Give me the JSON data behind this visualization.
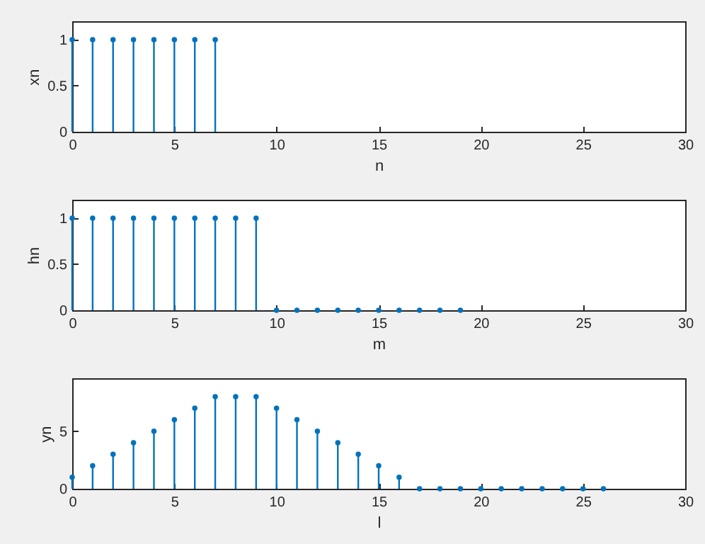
{
  "chart_data": [
    {
      "type": "lollipop",
      "xlabel": "n",
      "ylabel": "xn",
      "x": [
        0,
        1,
        2,
        3,
        4,
        5,
        6,
        7
      ],
      "series": [
        {
          "color": "#0072bd",
          "values": [
            1,
            1,
            1,
            1,
            1,
            1,
            1,
            1
          ]
        }
      ],
      "xlim": [
        0,
        30
      ],
      "xticks": [
        0,
        5,
        10,
        15,
        20,
        25,
        30
      ],
      "ylim": [
        0,
        1.2
      ],
      "yticks": [
        0,
        0.5,
        1
      ],
      "marker": "circle"
    },
    {
      "type": "lollipop",
      "xlabel": "m",
      "ylabel": "hn",
      "x": [
        0,
        1,
        2,
        3,
        4,
        5,
        6,
        7,
        8,
        9,
        10,
        11,
        12,
        13,
        14,
        15,
        16,
        17,
        18,
        19
      ],
      "series": [
        {
          "color": "#0072bd",
          "values": [
            1,
            1,
            1,
            1,
            1,
            1,
            1,
            1,
            1,
            1,
            0,
            0,
            0,
            0,
            0,
            0,
            0,
            0,
            0,
            0
          ]
        }
      ],
      "xlim": [
        0,
        30
      ],
      "xticks": [
        0,
        5,
        10,
        15,
        20,
        25,
        30
      ],
      "ylim": [
        0,
        1.2
      ],
      "yticks": [
        0,
        0.5,
        1
      ],
      "marker": "circle"
    },
    {
      "type": "lollipop",
      "xlabel": "l",
      "ylabel": "yn",
      "x": [
        0,
        1,
        2,
        3,
        4,
        5,
        6,
        7,
        8,
        9,
        10,
        11,
        12,
        13,
        14,
        15,
        16,
        17,
        18,
        19,
        20,
        21,
        22,
        23,
        24,
        25,
        26
      ],
      "series": [
        {
          "color": "#0072bd",
          "values": [
            1,
            2,
            3,
            4,
            5,
            6,
            7,
            8,
            8,
            8,
            7,
            6,
            5,
            4,
            3,
            2,
            1,
            0,
            0,
            0,
            0,
            0,
            0,
            0,
            0,
            0,
            0
          ]
        }
      ],
      "xlim": [
        0,
        30
      ],
      "xticks": [
        0,
        5,
        10,
        15,
        20,
        25,
        30
      ],
      "ylim": [
        0,
        9.6
      ],
      "yticks": [
        0,
        5
      ],
      "marker": "circle"
    }
  ]
}
